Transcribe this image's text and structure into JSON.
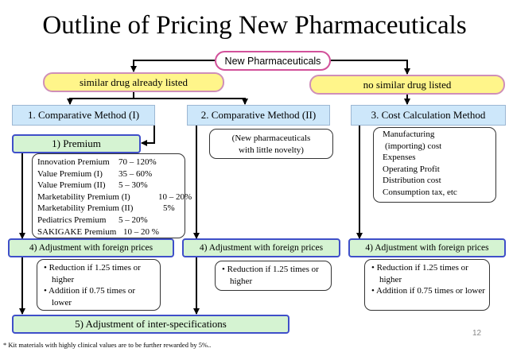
{
  "title": "Outline of Pricing New Pharmaceuticals",
  "root": "New Pharmaceuticals",
  "branches": {
    "listed": "similar drug already listed",
    "not_listed": "no similar drug listed"
  },
  "methods": {
    "m1": "1. Comparative Method (I)",
    "m2": "2. Comparative Method (II)",
    "m3": "3. Cost Calculation Method"
  },
  "premium": {
    "header": "1) Premium",
    "items": [
      {
        "name": "Innovation Premium",
        "range": "70 – 120%"
      },
      {
        "name": "Value Premium (I)",
        "range": "35 – 60%"
      },
      {
        "name": "Value Premium (II)",
        "range": "5 – 30%"
      },
      {
        "name": "Marketability Premium (I)",
        "range": "10 – 20%"
      },
      {
        "name": "Marketability Premium (II)",
        "range": "5%"
      },
      {
        "name": "Pediatrics Premium",
        "range": "5 – 20%"
      },
      {
        "name": "SAKIGAKE Premium",
        "range": "10 – 20 %"
      }
    ]
  },
  "novelty_note": [
    "(New pharmaceuticals",
    "with little novelty)"
  ],
  "cost_items": [
    "Manufacturing",
    "(importing) cost",
    "Expenses",
    "Operating Profit",
    "Distribution cost",
    "Consumption tax, etc"
  ],
  "adjustment_label": "4) Adjustment with foreign prices",
  "adjust_notes": {
    "left": [
      "• Reduction if 1.25 times or higher",
      "• Addition if 0.75 times or lower"
    ],
    "middle": [
      "• Reduction if 1.25 times or higher"
    ],
    "right": [
      "• Reduction if 1.25 times or higher",
      "• Addition if 0.75 times or lower"
    ]
  },
  "inter_spec": "5) Adjustment of inter-specifications",
  "page_number": "12",
  "footnote": "* Kit materials with highly clinical values are to be further rewarded by 5%..",
  "colors": {
    "pill_border": "#d2519a",
    "yellow": "#fff58a",
    "method_blue": "#cde7fa",
    "green": "#d5f3d2",
    "green_border": "#3f4fc9"
  }
}
